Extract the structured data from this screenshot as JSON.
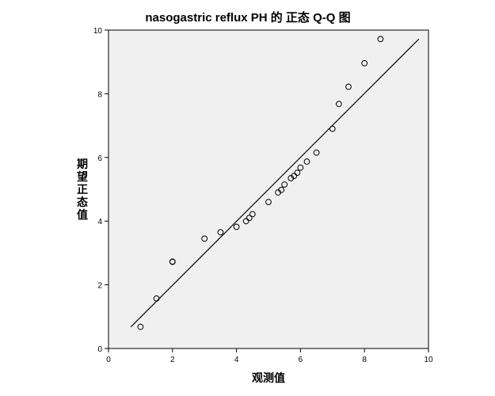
{
  "chart_data": {
    "type": "scatter",
    "title": "nasogastric reflux PH 的 正态 Q-Q 图",
    "xlabel": "观测值",
    "ylabel": "期望正态值",
    "xlim": [
      0,
      10
    ],
    "ylim": [
      0,
      10
    ],
    "x_ticks": [
      "0",
      "2",
      "4",
      "6",
      "8",
      "10"
    ],
    "y_ticks": [
      "0",
      "2",
      "4",
      "6",
      "8",
      "10"
    ],
    "grid": false,
    "legend": "none",
    "reference_line": {
      "x": [
        0.7,
        9.7
      ],
      "y": [
        0.68,
        9.72
      ]
    },
    "points": [
      {
        "x": 1.0,
        "y": 0.68
      },
      {
        "x": 1.5,
        "y": 1.57
      },
      {
        "x": 2.0,
        "y": 2.72
      },
      {
        "x": 2.0,
        "y": 2.73
      },
      {
        "x": 3.0,
        "y": 3.45
      },
      {
        "x": 3.5,
        "y": 3.65
      },
      {
        "x": 4.0,
        "y": 3.82
      },
      {
        "x": 4.3,
        "y": 4.0
      },
      {
        "x": 4.4,
        "y": 4.1
      },
      {
        "x": 4.5,
        "y": 4.22
      },
      {
        "x": 5.0,
        "y": 4.6
      },
      {
        "x": 5.3,
        "y": 4.9
      },
      {
        "x": 5.4,
        "y": 4.98
      },
      {
        "x": 5.5,
        "y": 5.15
      },
      {
        "x": 5.7,
        "y": 5.35
      },
      {
        "x": 5.8,
        "y": 5.42
      },
      {
        "x": 5.9,
        "y": 5.52
      },
      {
        "x": 6.0,
        "y": 5.68
      },
      {
        "x": 6.2,
        "y": 5.87
      },
      {
        "x": 6.5,
        "y": 6.15
      },
      {
        "x": 7.0,
        "y": 6.9
      },
      {
        "x": 7.2,
        "y": 7.68
      },
      {
        "x": 7.5,
        "y": 8.22
      },
      {
        "x": 8.0,
        "y": 8.96
      },
      {
        "x": 8.5,
        "y": 9.72
      }
    ]
  }
}
